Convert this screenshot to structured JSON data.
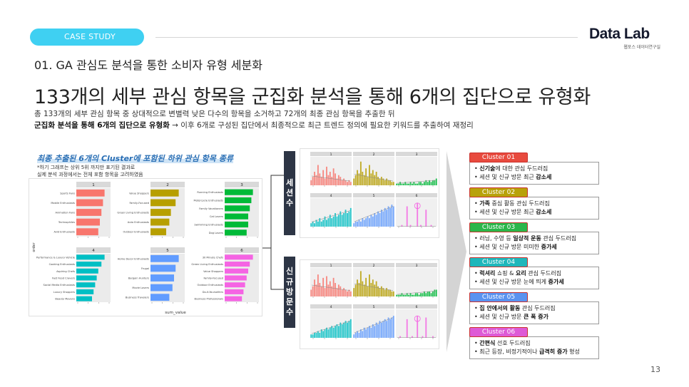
{
  "header": {
    "case_label": "CASE STUDY",
    "logo_main": "Data Lab",
    "logo_sub": "웹포스 데이터연구실"
  },
  "subtitle": "01. GA 관심도 분석을 통한 소비자 유형 세분화",
  "headline": "133개의 세부 관심 항목을 군집화 분석을 통해 6개의 집단으로 유형화",
  "description": {
    "line1": "총 133개의 세부 관심 항목 중 상대적으로 변별력 낮은 다수의 항목을 소거하고 72개의 최종 관심 항목을 추출한 뒤",
    "line2_bold": "군집화 분석을 통해 6개의 집단으로 유형화",
    "line2_rest": " → 이후 6개로 구성된 집단에서 최종적으로 최근 트렌드 정의에 필요한 키워드를 추출하여 재정리"
  },
  "left_panel": {
    "title": "최종 추출된 6개의 Cluster에 포함된 하위 관심 항목 종류",
    "note1": "*하기 그래프는 상위 5위 까지만 표기된 결과로",
    "note2": "실제 분석 과정에서는 전체 포함 항목을 고려하였음",
    "y_axis_label": "order",
    "x_axis_label": "sum_value"
  },
  "chart_data": [
    {
      "type": "bar",
      "title": "",
      "xlabel": "sum_value",
      "ylabel": "order",
      "orientation": "horizontal",
      "facets": [
        {
          "label": "1",
          "color": "#f8766d",
          "categories": [
            "Sports Fans",
            "Mobile Enthusiasts",
            "Animation Fans",
            "Technophiles",
            "Avid Enthusiasts"
          ],
          "values": [
            18,
            17,
            16,
            15,
            14
          ]
        },
        {
          "label": "2",
          "color": "#b79f00",
          "categories": [
            "Value Shoppers",
            "Family-Focused",
            "Green Living Enthusiasts",
            "Auto Enthusiasts",
            "Outdoor Enthusiasts"
          ],
          "values": [
            18,
            16,
            13,
            12,
            10
          ]
        },
        {
          "label": "3",
          "color": "#00ba38",
          "categories": [
            "Running Enthusiasts",
            "Motorcycle Enthusiasts",
            "Family Vacationers",
            "Cat Lovers",
            "Swimming Enthusiasts",
            "Dog Lovers"
          ],
          "values": [
            18,
            17,
            16,
            15,
            15,
            14
          ]
        },
        {
          "label": "4",
          "color": "#00bfc4",
          "categories": [
            "Performance & Luxury Vehicle",
            "Cooking Enthusiasts",
            "Aspiring Chefs",
            "Fast Food Cravers",
            "Social Media Enthusiasts",
            "Luxury Shoppers",
            "Beauty Mavens"
          ],
          "values": [
            18,
            16,
            14,
            13,
            12,
            11,
            10
          ]
        },
        {
          "label": "5",
          "color": "#619cff",
          "categories": [
            "Home Decor Enthusiasts",
            "Frugal",
            "Bargain Hunters",
            "Movie Lovers",
            "Business Travelers"
          ],
          "values": [
            18,
            16,
            15,
            14,
            12
          ]
        },
        {
          "label": "6",
          "color": "#f564e3",
          "categories": [
            "30 Minute Chefs",
            "Green Living Enthusiasts",
            "Value Shoppers",
            "Family-Focused",
            "Outdoor Enthusiasts",
            "Do-It-Yourselfers",
            "Business Professionals"
          ],
          "values": [
            18,
            16,
            15,
            14,
            13,
            12,
            11
          ]
        }
      ]
    },
    {
      "type": "bar",
      "title": "",
      "xlabel": "day",
      "ylabel": "pv",
      "facets": [
        {
          "label": "1",
          "color": "#f8766d",
          "values": [
            3,
            5,
            8,
            6,
            12,
            7,
            5,
            9,
            4,
            11,
            6,
            8,
            5,
            10,
            7,
            4,
            6,
            5,
            3,
            4,
            3,
            2,
            3,
            2
          ]
        },
        {
          "label": "2",
          "color": "#b79f00",
          "values": [
            4,
            6,
            9,
            7,
            14,
            8,
            6,
            10,
            5,
            12,
            7,
            9,
            6,
            8,
            5,
            4,
            5,
            4,
            3,
            4,
            3,
            3,
            2,
            2
          ]
        },
        {
          "label": "3",
          "color": "#00ba38",
          "values": [
            1,
            1,
            2,
            1,
            1,
            2,
            1,
            1,
            2,
            1,
            2,
            1,
            1,
            2,
            2,
            1,
            2,
            3,
            2,
            3,
            2,
            3,
            3,
            4
          ]
        },
        {
          "label": "4",
          "color": "#00bfc4",
          "values": [
            2,
            3,
            2,
            4,
            3,
            5,
            3,
            4,
            6,
            4,
            5,
            7,
            5,
            6,
            8,
            6,
            7,
            9,
            7,
            8,
            10,
            8,
            9,
            11
          ]
        },
        {
          "label": "5",
          "color": "#619cff",
          "values": [
            2,
            3,
            3,
            4,
            3,
            5,
            4,
            5,
            6,
            5,
            7,
            6,
            8,
            7,
            9,
            8,
            10,
            9,
            11,
            10,
            12,
            11,
            13,
            12
          ]
        },
        {
          "label": "6",
          "color": "#f564e3",
          "values": [
            0,
            0,
            0,
            1,
            0,
            0,
            12,
            0,
            1,
            0,
            0,
            0,
            14,
            0,
            1,
            0,
            0,
            10,
            0,
            0,
            1,
            0,
            0,
            0
          ]
        }
      ]
    },
    {
      "type": "bar",
      "title": "",
      "xlabel": "day",
      "ylabel": "pv",
      "facets": [
        {
          "label": "1",
          "color": "#f8766d",
          "values": [
            4,
            6,
            10,
            7,
            13,
            8,
            6,
            11,
            5,
            12,
            7,
            9,
            6,
            11,
            8,
            5,
            7,
            6,
            4,
            5,
            4,
            3,
            4,
            3
          ]
        },
        {
          "label": "2",
          "color": "#b79f00",
          "values": [
            5,
            7,
            10,
            8,
            15,
            9,
            7,
            11,
            6,
            13,
            8,
            10,
            7,
            9,
            6,
            5,
            6,
            5,
            4,
            5,
            4,
            4,
            3,
            3
          ]
        },
        {
          "label": "3",
          "color": "#00ba38",
          "values": [
            1,
            1,
            1,
            2,
            1,
            1,
            2,
            1,
            2,
            1,
            1,
            2,
            2,
            1,
            2,
            2,
            3,
            2,
            3,
            3,
            2,
            3,
            4,
            4
          ]
        },
        {
          "label": "4",
          "color": "#00bfc4",
          "values": [
            2,
            2,
            3,
            3,
            4,
            3,
            5,
            4,
            5,
            6,
            5,
            6,
            7,
            6,
            7,
            8,
            7,
            9,
            8,
            9,
            10,
            9,
            10,
            11
          ]
        },
        {
          "label": "5",
          "color": "#619cff",
          "values": [
            2,
            3,
            4,
            3,
            5,
            4,
            6,
            5,
            6,
            7,
            6,
            8,
            7,
            9,
            8,
            10,
            9,
            10,
            11,
            10,
            12,
            11,
            12,
            13
          ]
        },
        {
          "label": "6",
          "color": "#f564e3",
          "values": [
            0,
            0,
            1,
            0,
            0,
            0,
            11,
            0,
            0,
            1,
            0,
            0,
            13,
            0,
            0,
            1,
            0,
            12,
            0,
            0,
            0,
            1,
            0,
            0
          ]
        }
      ]
    }
  ],
  "row_labels": {
    "session": [
      "세",
      "션",
      "수"
    ],
    "new_visit": [
      "신",
      "규",
      "방",
      "문",
      "수"
    ]
  },
  "clusters": [
    {
      "tag": "Cluster 01",
      "color": "#e84a3e",
      "line1_bold": "신기술",
      "line1_rest": "에 대한 관심 두드러짐",
      "line2_pre": "세션 및 신규 방문 최근 ",
      "line2_bold": "감소세",
      "line2_post": ""
    },
    {
      "tag": "Cluster 02",
      "color": "#b8a20a",
      "line1_bold": "가족",
      "line1_rest": " 중심 활동 관심 두드러짐",
      "line2_pre": "세션 및 신규 방문 최근 ",
      "line2_bold": "감소세",
      "line2_post": ""
    },
    {
      "tag": "Cluster 03",
      "color": "#2bb64a",
      "line1_pre": "러닝, 수영 등 ",
      "line1_bold": "일상적 운동",
      "line1_rest": " 관심 두드러짐",
      "line2_pre": "세션 및 신규 방문 미미한 ",
      "line2_bold": "증가세",
      "line2_post": ""
    },
    {
      "tag": "Cluster 04",
      "color": "#1fb7bb",
      "line1_bold": "럭셔리",
      "line1_rest": " 쇼핑 & ",
      "line1_bold2": "요리",
      "line1_rest2": " 관심 두드러짐",
      "line2_pre": "세션 및 신규 방문 눈에 띄게 ",
      "line2_bold": "증가세",
      "line2_post": ""
    },
    {
      "tag": "Cluster 05",
      "color": "#5a93f0",
      "line1_bold": "집 안에서의 활동",
      "line1_rest": " 관심 두드러짐",
      "line2_pre": "세션 및 신규 방문 ",
      "line2_bold": "큰 폭 증가",
      "line2_post": ""
    },
    {
      "tag": "Cluster 06",
      "color": "#de5ad6",
      "line1_bold": "간편식",
      "line1_rest": " 선호 두드러짐",
      "line2_pre": "최근 등장, 비정기적이나 ",
      "line2_bold": "급격히 증가",
      "line2_post": " 형성"
    }
  ],
  "page_number": "13"
}
